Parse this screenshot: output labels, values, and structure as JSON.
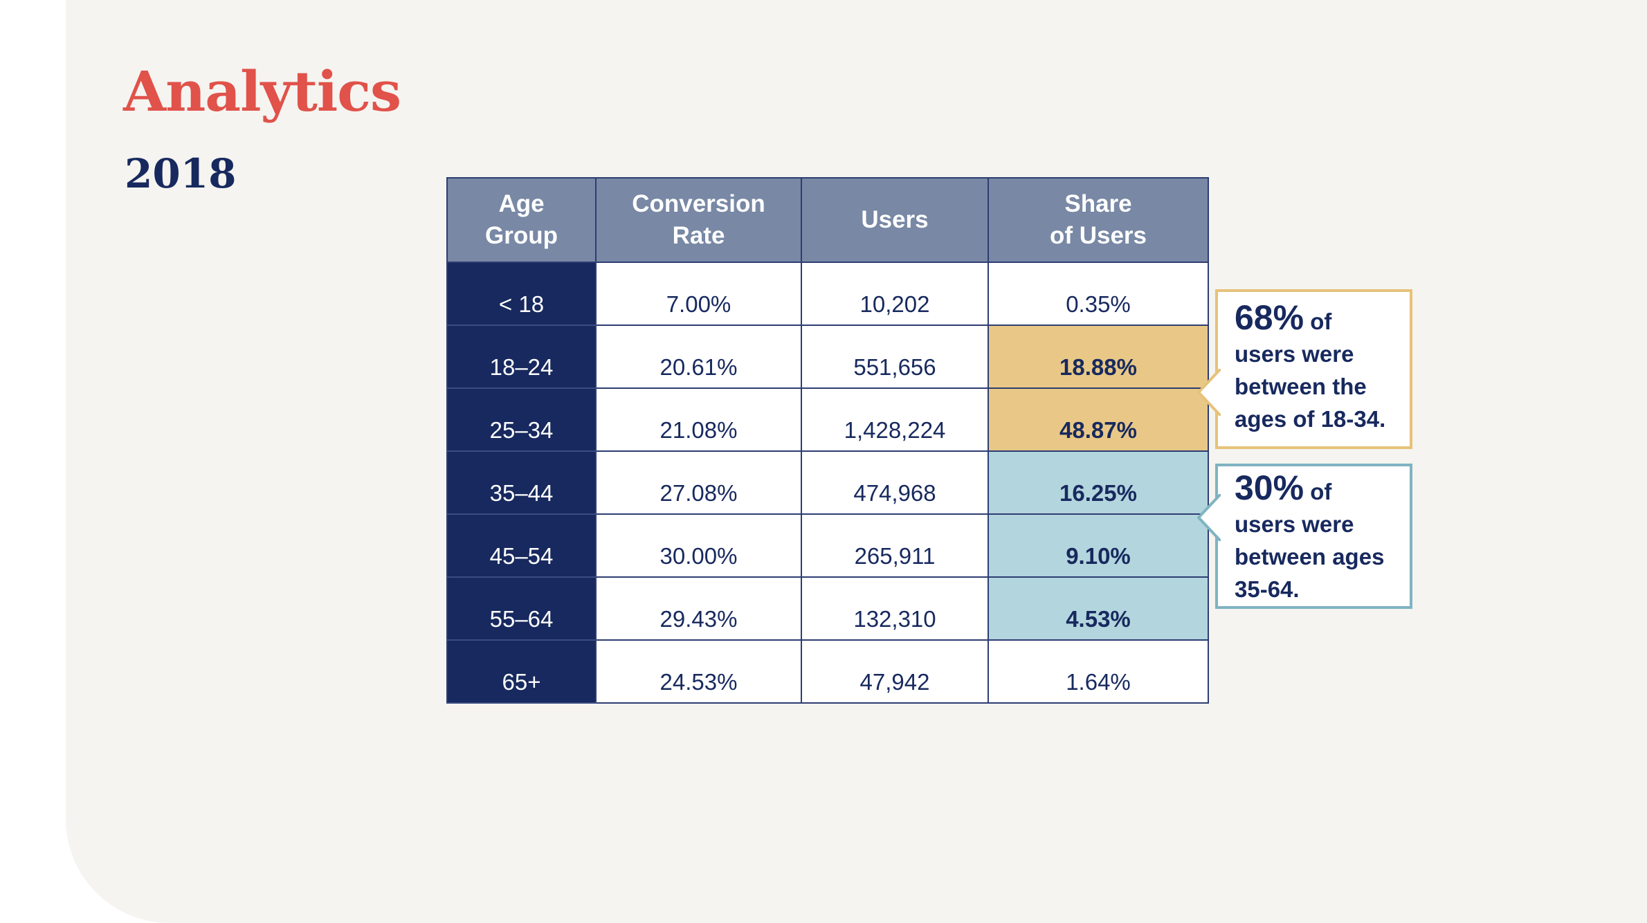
{
  "title": "Analytics",
  "subtitle": "2018",
  "table": {
    "headers": [
      [
        "Age",
        "Group"
      ],
      [
        "Conversion",
        "Rate"
      ],
      [
        "Users"
      ],
      [
        "Share",
        "of Users"
      ]
    ],
    "rows": [
      {
        "age": "< 18",
        "conversion": "7.00%",
        "users": "10,202",
        "share": "0.35%",
        "highlight": "none"
      },
      {
        "age": "18–24",
        "conversion": "20.61%",
        "users": "551,656",
        "share": "18.88%",
        "highlight": "gold"
      },
      {
        "age": "25–34",
        "conversion": "21.08%",
        "users": "1,428,224",
        "share": "48.87%",
        "highlight": "gold"
      },
      {
        "age": "35–44",
        "conversion": "27.08%",
        "users": "474,968",
        "share": "16.25%",
        "highlight": "blue"
      },
      {
        "age": "45–54",
        "conversion": "30.00%",
        "users": "265,911",
        "share": "9.10%",
        "highlight": "blue"
      },
      {
        "age": "55–64",
        "conversion": "29.43%",
        "users": "132,310",
        "share": "4.53%",
        "highlight": "blue"
      },
      {
        "age": "65+",
        "conversion": "24.53%",
        "users": "47,942",
        "share": "1.64%",
        "highlight": "none"
      }
    ]
  },
  "callouts": {
    "young": {
      "value": "68%",
      "of": "of",
      "lines": [
        "users were",
        "between the",
        "ages of 18-34."
      ]
    },
    "middle": {
      "value": "30%",
      "of": "of",
      "lines": [
        "users were",
        "between ages",
        "35-64."
      ]
    }
  },
  "colors": {
    "title": "#e0524a",
    "navy": "#17295e",
    "header": "#7888a5",
    "gold_highlight": "#e9c887",
    "blue_highlight": "#b3d5dd",
    "background": "#f5f4f0"
  }
}
